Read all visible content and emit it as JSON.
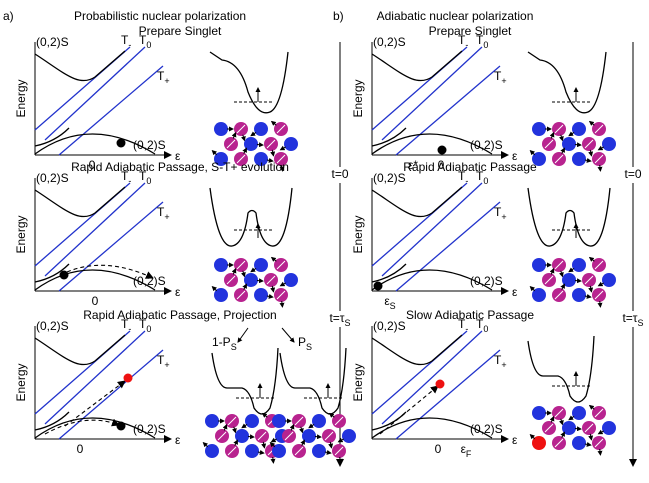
{
  "panels": [
    {
      "label": "a)",
      "title": "Probabilistic nuclear polarization",
      "time_labels": [
        {
          "text": "t=0"
        },
        {
          "text": "t=τ",
          "sub": "S"
        }
      ],
      "steps": [
        {
          "caption": "Prepare Singlet",
          "y_label": "Energy",
          "x_label": "ε",
          "upper_state": "(0,2)S",
          "lower_state": "(0,2)S",
          "t_minus": {
            "text": "T",
            "sub": "-"
          },
          "t_zero": {
            "text": "T",
            "sub": "0"
          },
          "t_plus": {
            "text": "T",
            "sub": "+"
          },
          "x_ticks": [
            {
              "text": "0"
            }
          ]
        },
        {
          "caption": "Rapid Adiabatic Passage, S-T+ evolution",
          "y_label": "Energy",
          "x_label": "ε",
          "upper_state": "(0,2)S",
          "lower_state": "(0,2)S",
          "t_minus": {
            "text": "T",
            "sub": "-"
          },
          "t_zero": {
            "text": "T",
            "sub": "0"
          },
          "t_plus": {
            "text": "T",
            "sub": "+"
          },
          "x_ticks": [
            {
              "text": "0"
            }
          ]
        },
        {
          "caption": "Rapid Adiabatic Passage, Projection",
          "y_label": "Energy",
          "x_label": "ε",
          "upper_state": "(0,2)S",
          "lower_state": "(0,2)S",
          "t_minus": {
            "text": "T",
            "sub": "-"
          },
          "t_zero": {
            "text": "T",
            "sub": "0"
          },
          "t_plus": {
            "text": "T",
            "sub": "+"
          },
          "x_ticks": [
            {
              "text": "0"
            }
          ],
          "outcomes": [
            {
              "text": "1-P",
              "sub": "S"
            },
            {
              "text": "P",
              "sub": "S"
            }
          ]
        }
      ]
    },
    {
      "label": "b)",
      "title": "Adiabatic nuclear polarization",
      "time_labels": [
        {
          "text": "t=0"
        },
        {
          "text": "t=τ",
          "sub": "S"
        }
      ],
      "steps": [
        {
          "caption": "Prepare Singlet",
          "y_label": "Energy",
          "x_label": "ε",
          "upper_state": "(0,2)S",
          "lower_state": "(0,2)S",
          "t_minus": {
            "text": "T",
            "sub": "-"
          },
          "t_zero": {
            "text": "T",
            "sub": "0"
          },
          "t_plus": {
            "text": "T",
            "sub": "+"
          },
          "x_ticks": [
            {
              "text": "ε*"
            },
            {
              "text": "0"
            }
          ]
        },
        {
          "caption": "Rapid Adiabatic Passage",
          "y_label": "Energy",
          "x_label": "ε",
          "upper_state": "(0,2)S",
          "lower_state": "(0,2)S",
          "t_minus": {
            "text": "T",
            "sub": "-"
          },
          "t_zero": {
            "text": "T",
            "sub": "0"
          },
          "t_plus": {
            "text": "T",
            "sub": "+"
          },
          "x_ticks": [
            {
              "text": "ε",
              "sub": "S"
            }
          ]
        },
        {
          "caption": "Slow Adiabatic Passage",
          "y_label": "Energy",
          "x_label": "ε",
          "upper_state": "(0,2)S",
          "lower_state": "(0,2)S",
          "t_minus": {
            "text": "T",
            "sub": "-"
          },
          "t_zero": {
            "text": "T",
            "sub": "0"
          },
          "t_plus": {
            "text": "T",
            "sub": "+"
          },
          "x_ticks": [
            {
              "text": "0"
            },
            {
              "text": "ε",
              "sub": "F"
            }
          ]
        }
      ]
    }
  ]
}
